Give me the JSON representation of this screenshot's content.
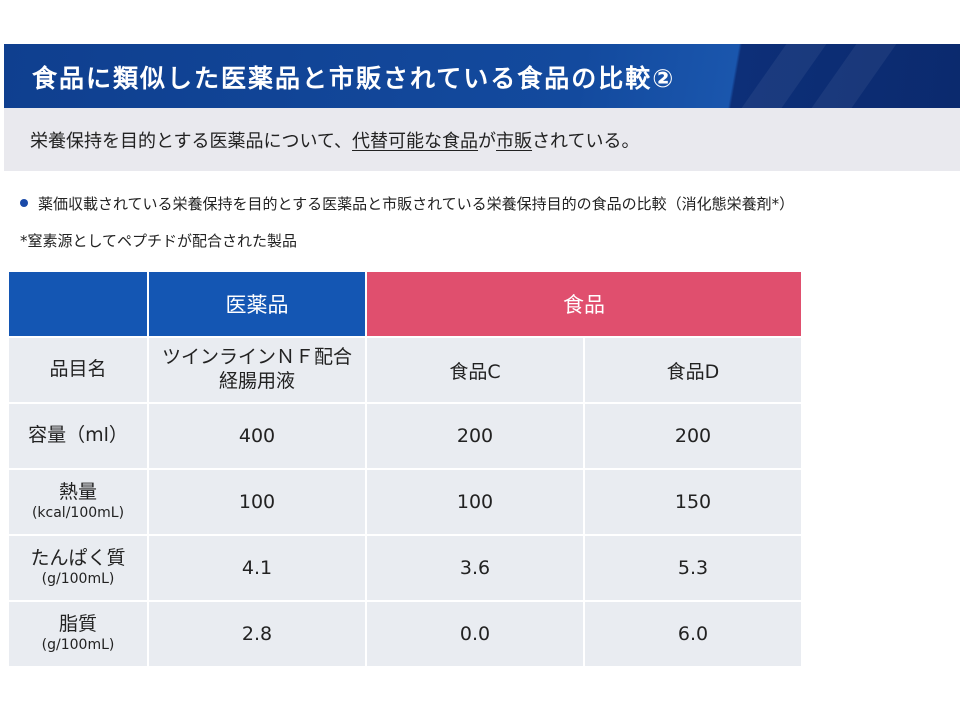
{
  "title": "食品に類似した医薬品と市販されている食品の比較②",
  "subtitle": {
    "prefix": "栄養保持を目的とする医薬品について、",
    "underlined1": "代替可能な食品",
    "mid": "が",
    "underlined2": "市販",
    "suffix": "されている。"
  },
  "bullet": "薬価収載されている栄養保持を目的とする医薬品と市販されている栄養保持目的の食品の比較（消化態栄養剤*）",
  "note": "*窒素源としてペプチドが配合された製品",
  "table": {
    "headers": {
      "drug": "医薬品",
      "food": "食品"
    },
    "rows": [
      {
        "label": "品目名",
        "unit": "",
        "values": [
          "ツインラインＮＦ配合\n経腸用液",
          "食品C",
          "食品D"
        ]
      },
      {
        "label": "容量（ml）",
        "unit": "",
        "values": [
          "400",
          "200",
          "200"
        ]
      },
      {
        "label": "熱量",
        "unit": "(kcal/100mL)",
        "values": [
          "100",
          "100",
          "150"
        ]
      },
      {
        "label": "たんぱく質",
        "unit": "(g/100mL)",
        "values": [
          "4.1",
          "3.6",
          "5.3"
        ]
      },
      {
        "label": "脂質",
        "unit": "(g/100mL)",
        "values": [
          "2.8",
          "0.0",
          "6.0"
        ]
      }
    ]
  },
  "colors": {
    "title_bg": "#134a9e",
    "drug_header": "#1456b3",
    "food_header": "#e04f6e",
    "cell_bg": "#e9ecf1",
    "subtitle_bg": "#e9e9ee"
  }
}
